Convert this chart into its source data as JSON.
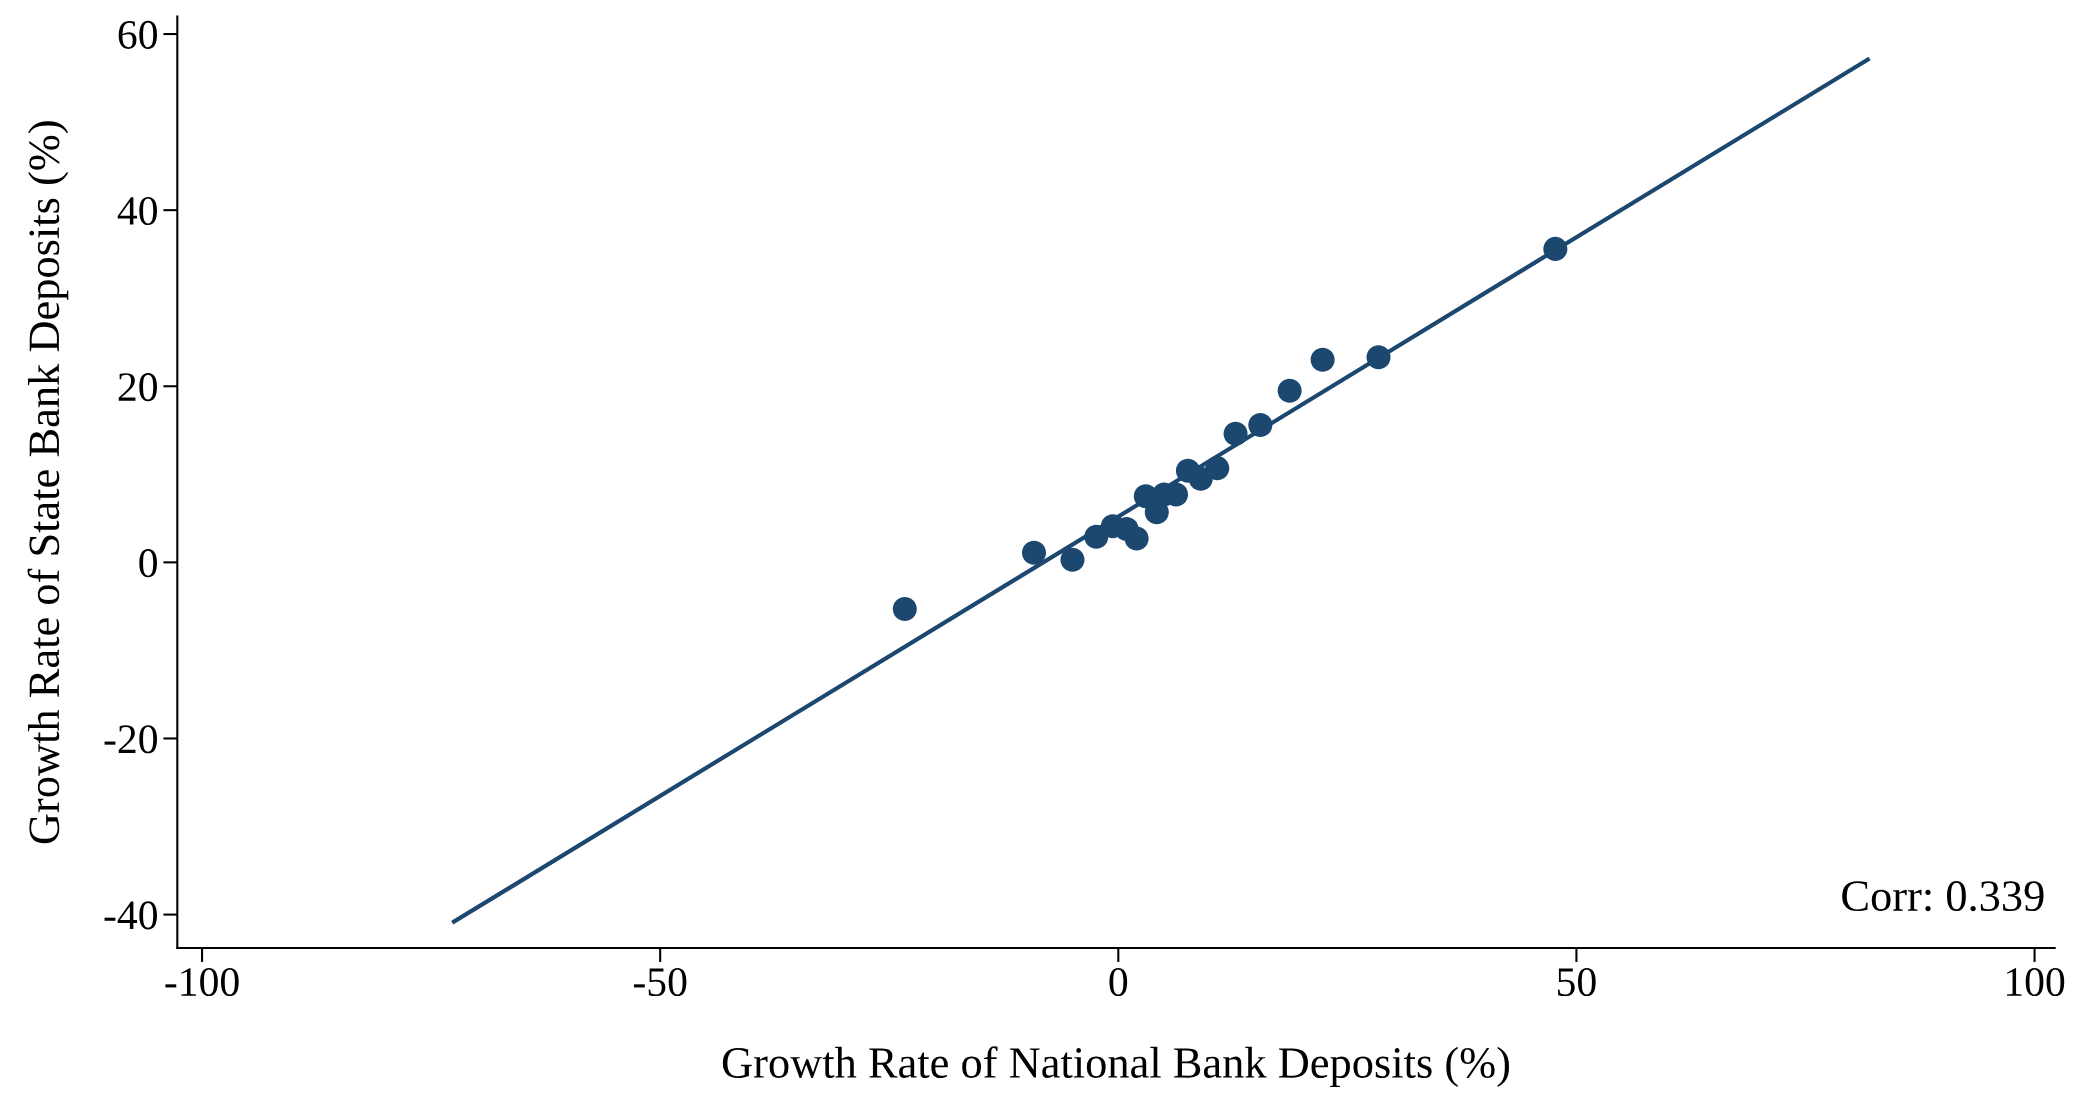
{
  "chart_data": {
    "type": "scatter",
    "xlabel": "Growth Rate of National Bank Deposits (%)",
    "ylabel": "Growth Rate of State Bank Deposits (%)",
    "annotations": [
      "Corr: 0.339"
    ],
    "xlim": [
      -102.7,
      102.2
    ],
    "ylim": [
      -43.8,
      62
    ],
    "xticks": [
      -100,
      -50,
      0,
      50,
      100
    ],
    "yticks": [
      -40,
      -20,
      0,
      20,
      40,
      60
    ],
    "grid": false,
    "series": [
      {
        "marker": "circle",
        "color": "#1c4870",
        "x": [
          -23.3,
          -9.2,
          -5.0,
          -2.4,
          -0.6,
          0.9,
          2.0,
          3.0,
          4.2,
          5.0,
          6.3,
          7.6,
          9.0,
          10.8,
          12.8,
          15.5,
          18.7,
          22.3,
          28.4,
          47.7
        ],
        "values": [
          -5.3,
          1.1,
          0.3,
          2.9,
          4.1,
          3.8,
          2.7,
          7.5,
          5.7,
          7.7,
          7.7,
          10.4,
          9.5,
          10.7,
          14.6,
          15.6,
          19.5,
          23.0,
          23.3,
          35.6
        ]
      },
      {
        "type": "line",
        "color": "#1c4870",
        "x": [
          -72.5,
          81.8
        ],
        "values": [
          -40.8,
          57.1
        ]
      }
    ]
  }
}
